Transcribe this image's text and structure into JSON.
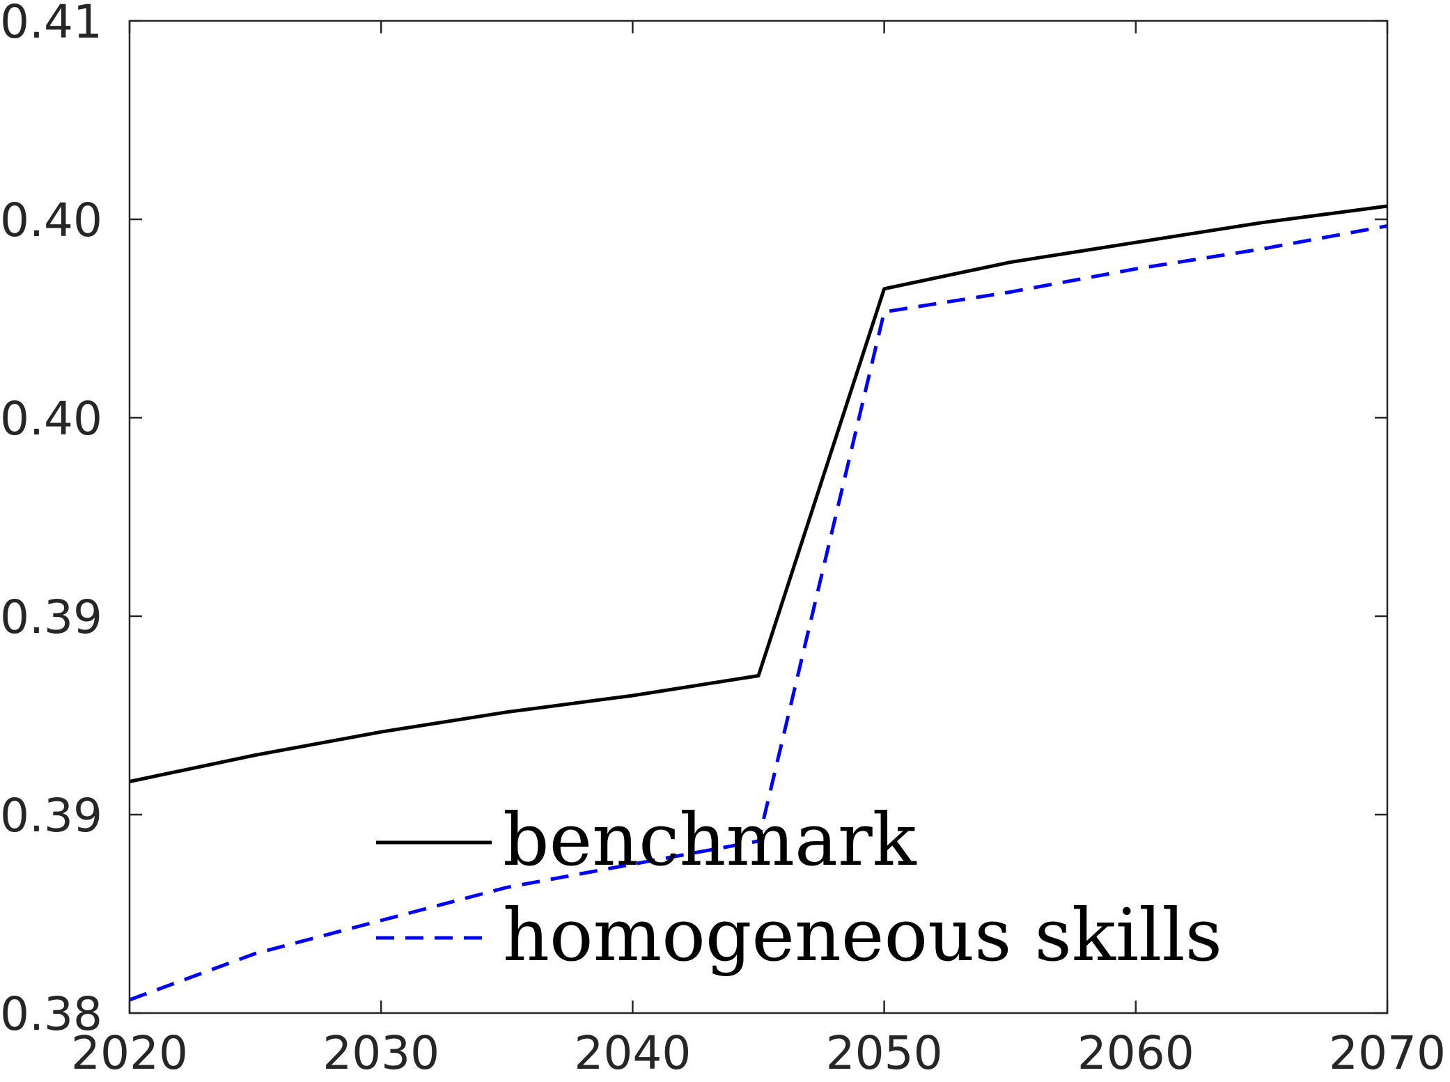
{
  "chart_data": {
    "type": "line",
    "title": "",
    "xlabel": "",
    "ylabel": "",
    "x": [
      2020,
      2025,
      2030,
      2035,
      2040,
      2045,
      2050,
      2055,
      2060,
      2065,
      2070
    ],
    "xlim": [
      2020,
      2070
    ],
    "ylim": [
      0.38,
      0.41
    ],
    "x_ticks": [
      {
        "value": 2020,
        "label": "2020"
      },
      {
        "value": 2030,
        "label": "2030"
      },
      {
        "value": 2040,
        "label": "2040"
      },
      {
        "value": 2050,
        "label": "2050"
      },
      {
        "value": 2060,
        "label": "2060"
      },
      {
        "value": 2070,
        "label": "2070"
      }
    ],
    "y_ticks": [
      {
        "value": 0.38,
        "label": "0.38"
      },
      {
        "value": 0.386,
        "label": "0.39"
      },
      {
        "value": 0.392,
        "label": "0.39"
      },
      {
        "value": 0.398,
        "label": "0.40"
      },
      {
        "value": 0.404,
        "label": "0.40"
      },
      {
        "value": 0.41,
        "label": "0.41"
      }
    ],
    "grid": false,
    "legend_position": "bottom-center",
    "series": [
      {
        "name": "benchmark",
        "color": "#000000",
        "style": "solid",
        "values": [
          0.387,
          0.3878,
          0.3885,
          0.3891,
          0.3896,
          0.3902,
          0.4019,
          0.4027,
          0.4033,
          0.4039,
          0.4044
        ]
      },
      {
        "name": "homogeneous skills",
        "color": "#0000ff",
        "style": "dashed",
        "values": [
          0.3804,
          0.3818,
          0.3828,
          0.3838,
          0.3845,
          0.3852,
          0.4012,
          0.4018,
          0.4025,
          0.4031,
          0.4038
        ]
      }
    ]
  }
}
